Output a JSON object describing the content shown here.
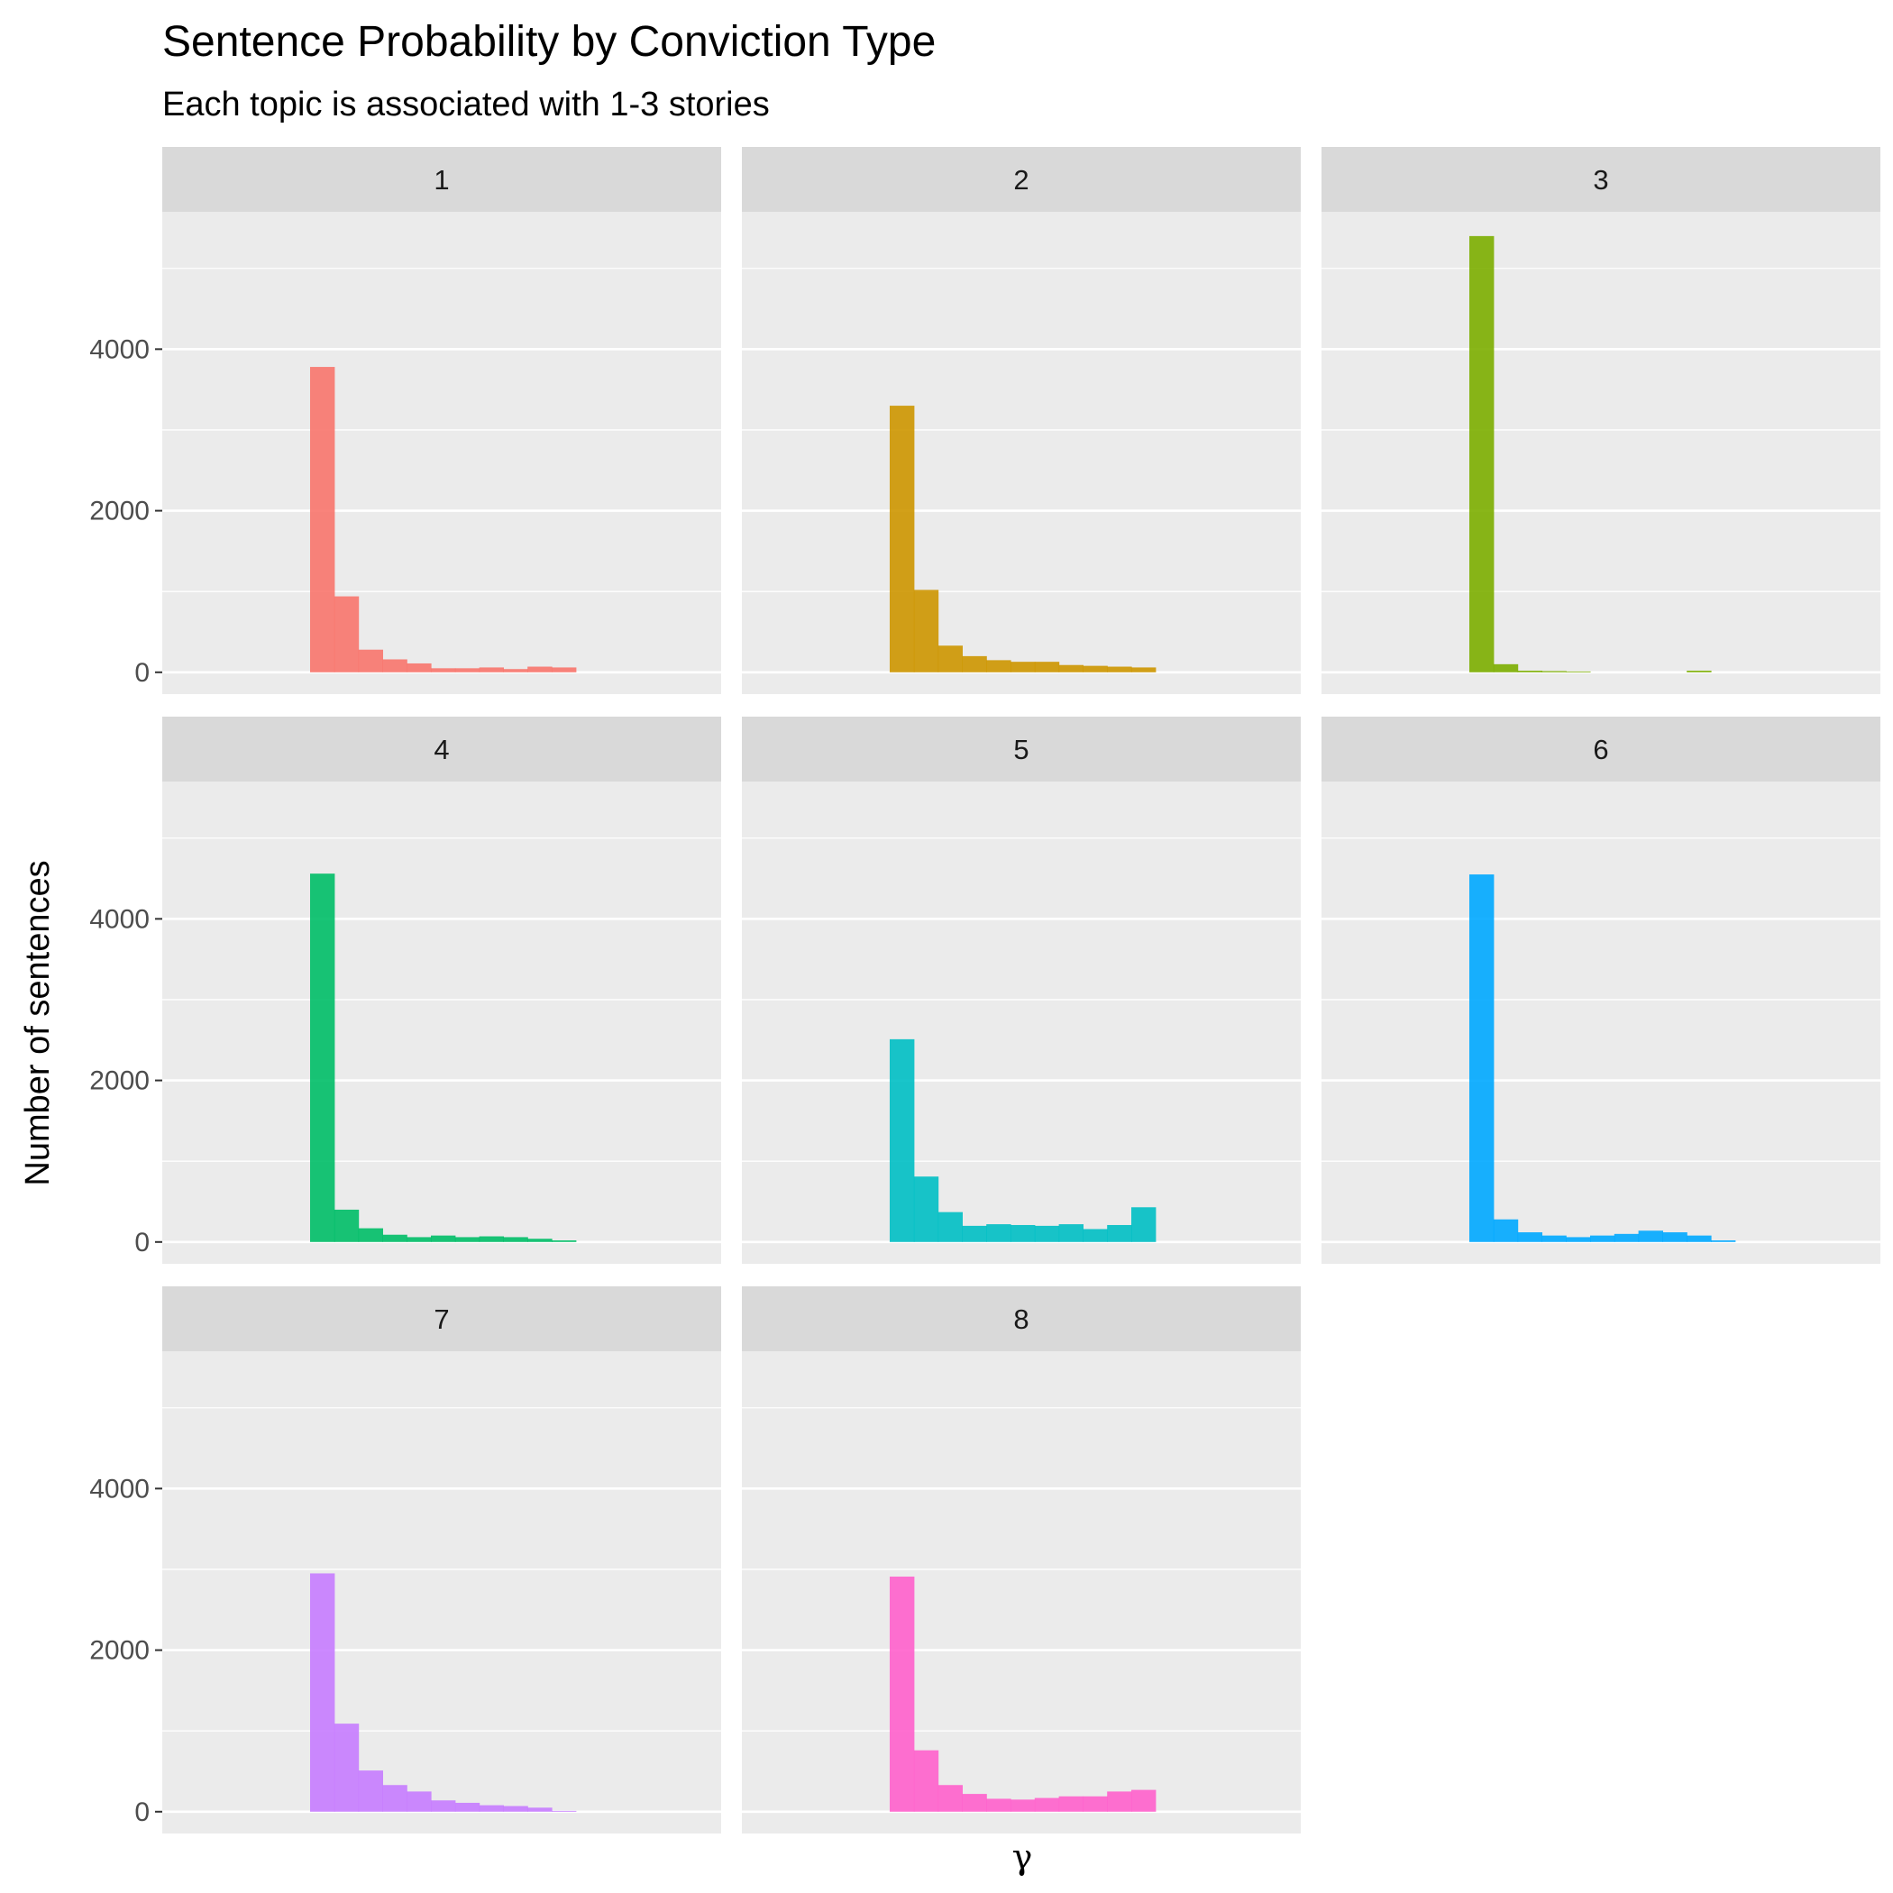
{
  "chart_data": {
    "type": "bar",
    "title": "Sentence Probability by Conviction Type",
    "subtitle": "Each topic is associated with 1-3 stories",
    "xlabel": "γ",
    "ylabel": "Number of sentences",
    "ylim": [
      -270,
      5700
    ],
    "yticks": [
      0,
      2000,
      4000
    ],
    "ytick_labels": [
      "0",
      "2000",
      "4000"
    ],
    "grid": true,
    "legend": "none",
    "bins": 11,
    "panels": [
      {
        "label": "1",
        "color": "#F8766D",
        "values": [
          3780,
          940,
          280,
          160,
          110,
          50,
          50,
          60,
          40,
          70,
          60
        ]
      },
      {
        "label": "2",
        "color": "#CD9600",
        "values": [
          3300,
          1020,
          330,
          200,
          150,
          130,
          130,
          90,
          80,
          70,
          60
        ]
      },
      {
        "label": "3",
        "color": "#7CAE00",
        "values": [
          5400,
          100,
          20,
          15,
          10,
          0,
          0,
          0,
          0,
          20,
          0
        ]
      },
      {
        "label": "4",
        "color": "#00BE67",
        "values": [
          4560,
          400,
          170,
          90,
          60,
          80,
          60,
          70,
          60,
          40,
          20
        ]
      },
      {
        "label": "5",
        "color": "#00BFC4",
        "values": [
          2510,
          810,
          370,
          200,
          220,
          210,
          200,
          220,
          160,
          210,
          430
        ]
      },
      {
        "label": "6",
        "color": "#00A9FF",
        "values": [
          4550,
          280,
          120,
          80,
          60,
          80,
          100,
          140,
          120,
          80,
          20
        ]
      },
      {
        "label": "7",
        "color": "#C77CFF",
        "values": [
          2950,
          1090,
          510,
          330,
          250,
          140,
          110,
          80,
          70,
          50,
          10
        ]
      },
      {
        "label": "8",
        "color": "#FF61CC",
        "values": [
          2910,
          760,
          330,
          220,
          160,
          150,
          170,
          190,
          190,
          250,
          270
        ]
      }
    ]
  }
}
